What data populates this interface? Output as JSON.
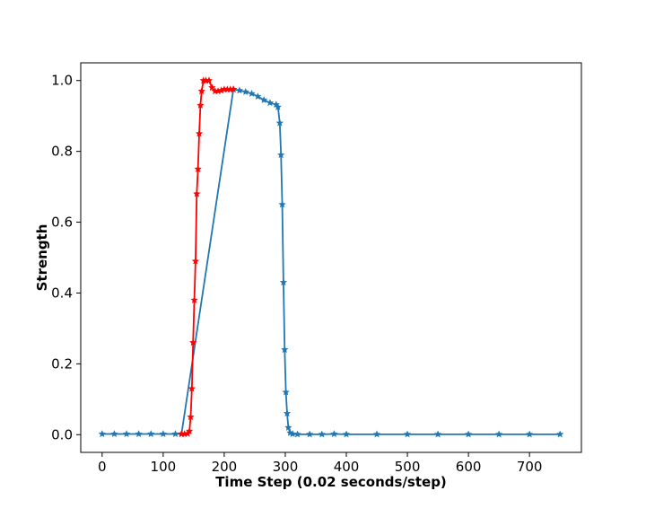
{
  "chart_data": {
    "type": "line",
    "title": "",
    "xlabel": "Time Step (0.02 seconds/step)",
    "ylabel": "Strength",
    "xlim": [
      -35,
      785
    ],
    "ylim": [
      -0.05,
      1.05
    ],
    "xticks": [
      0,
      100,
      200,
      300,
      400,
      500,
      600,
      700
    ],
    "yticks": [
      0.0,
      0.2,
      0.4,
      0.6,
      0.8,
      1.0
    ],
    "ytick_labels": [
      "0.0",
      "0.2",
      "0.4",
      "0.6",
      "0.8",
      "1.0"
    ],
    "grid": false,
    "legend": "none",
    "marker": "star",
    "series": [
      {
        "color": "#1f77b4",
        "x": [
          0,
          20,
          40,
          60,
          80,
          100,
          120,
          130,
          215,
          225,
          235,
          245,
          255,
          265,
          275,
          285,
          288,
          291,
          293,
          295,
          297,
          299,
          301,
          303,
          305,
          308,
          312,
          320,
          340,
          360,
          380,
          400,
          450,
          500,
          550,
          600,
          650,
          700,
          750
        ],
        "y": [
          0.002,
          0.002,
          0.002,
          0.002,
          0.002,
          0.002,
          0.002,
          0.002,
          0.975,
          0.972,
          0.968,
          0.963,
          0.955,
          0.945,
          0.937,
          0.932,
          0.925,
          0.88,
          0.79,
          0.65,
          0.43,
          0.24,
          0.12,
          0.06,
          0.02,
          0.005,
          0.002,
          0.001,
          0.001,
          0.001,
          0.002,
          0.001,
          0.001,
          0.001,
          0.001,
          0.001,
          0.001,
          0.001,
          0.001
        ]
      },
      {
        "color": "#ff0000",
        "x": [
          130,
          135,
          140,
          143,
          145,
          147,
          149,
          151,
          153,
          155,
          157,
          159,
          161,
          163,
          166,
          170,
          175,
          180,
          185,
          190,
          195,
          200,
          205,
          210,
          215
        ],
        "y": [
          0.002,
          0.002,
          0.003,
          0.01,
          0.05,
          0.13,
          0.26,
          0.38,
          0.49,
          0.68,
          0.75,
          0.85,
          0.93,
          0.97,
          1.0,
          1.0,
          1.0,
          0.98,
          0.97,
          0.97,
          0.972,
          0.975,
          0.975,
          0.975,
          0.975
        ]
      }
    ]
  }
}
